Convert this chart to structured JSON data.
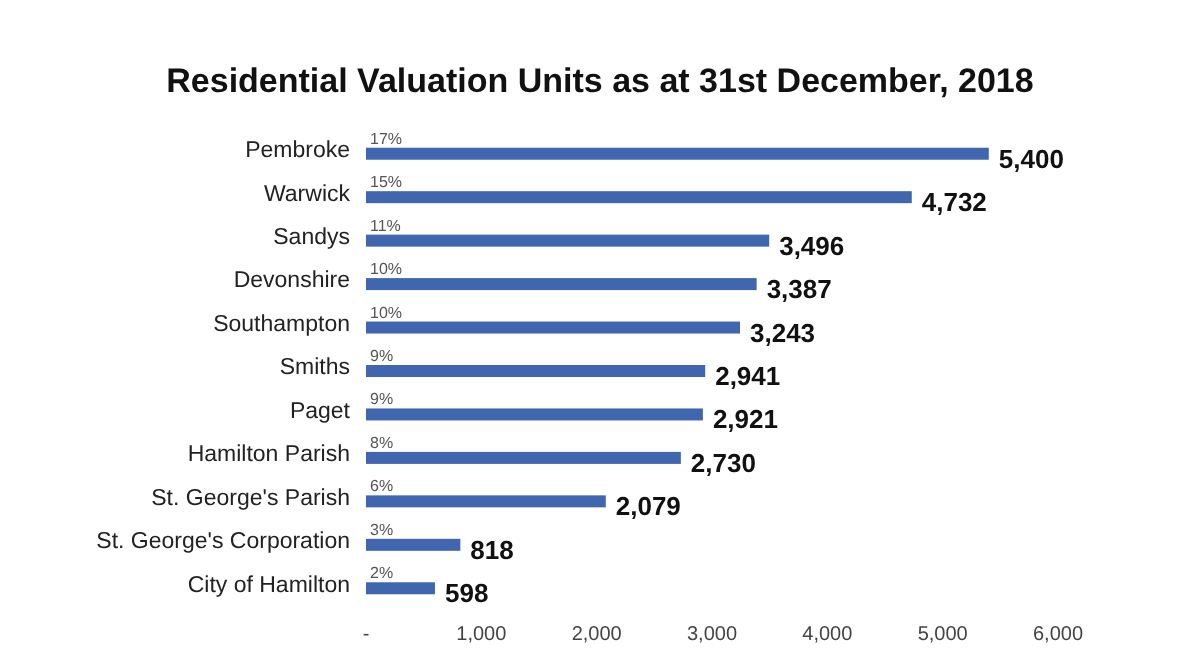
{
  "chart_data": {
    "type": "bar",
    "orientation": "horizontal",
    "title": "Residential Valuation Units as at 31st December, 2018",
    "categories": [
      "Pembroke",
      "Warwick",
      "Sandys",
      "Devonshire",
      "Southampton",
      "Smiths",
      "Paget",
      "Hamilton Parish",
      "St. George's Parish",
      "St. George's Corporation",
      "City of Hamilton"
    ],
    "values": [
      5400,
      4732,
      3496,
      3387,
      3243,
      2941,
      2921,
      2730,
      2079,
      818,
      598
    ],
    "value_labels": [
      "5,400",
      "4,732",
      "3,496",
      "3,387",
      "3,243",
      "2,941",
      "2,921",
      "2,730",
      "2,079",
      "818",
      "598"
    ],
    "color": "#4166b0",
    "xlim": [
      0,
      6000
    ],
    "xticks": [
      {
        "value": 0,
        "label": "-"
      },
      {
        "value": 1000,
        "label": "1,000"
      },
      {
        "value": 2000,
        "label": "2,000"
      },
      {
        "value": 3000,
        "label": "3,000"
      },
      {
        "value": 4000,
        "label": "4,000"
      },
      {
        "value": 5000,
        "label": "5,000"
      },
      {
        "value": 6000,
        "label": "6,000"
      }
    ],
    "grid": false,
    "annotations": [
      {
        "text": "17%",
        "y": "Pembroke"
      },
      {
        "text": "15%",
        "y": "Warwick"
      },
      {
        "text": "11%",
        "y": "Sandys"
      },
      {
        "text": "10%",
        "y": "Devonshire"
      },
      {
        "text": "10%",
        "y": "Southampton"
      },
      {
        "text": "9%",
        "y": "Smiths"
      },
      {
        "text": "9%",
        "y": "Paget"
      },
      {
        "text": "8%",
        "y": "Hamilton Parish"
      },
      {
        "text": "6%",
        "y": "St. George's Parish"
      },
      {
        "text": "3%",
        "y": "St. George's Corporation"
      },
      {
        "text": "2%",
        "y": "City of Hamilton"
      }
    ]
  }
}
